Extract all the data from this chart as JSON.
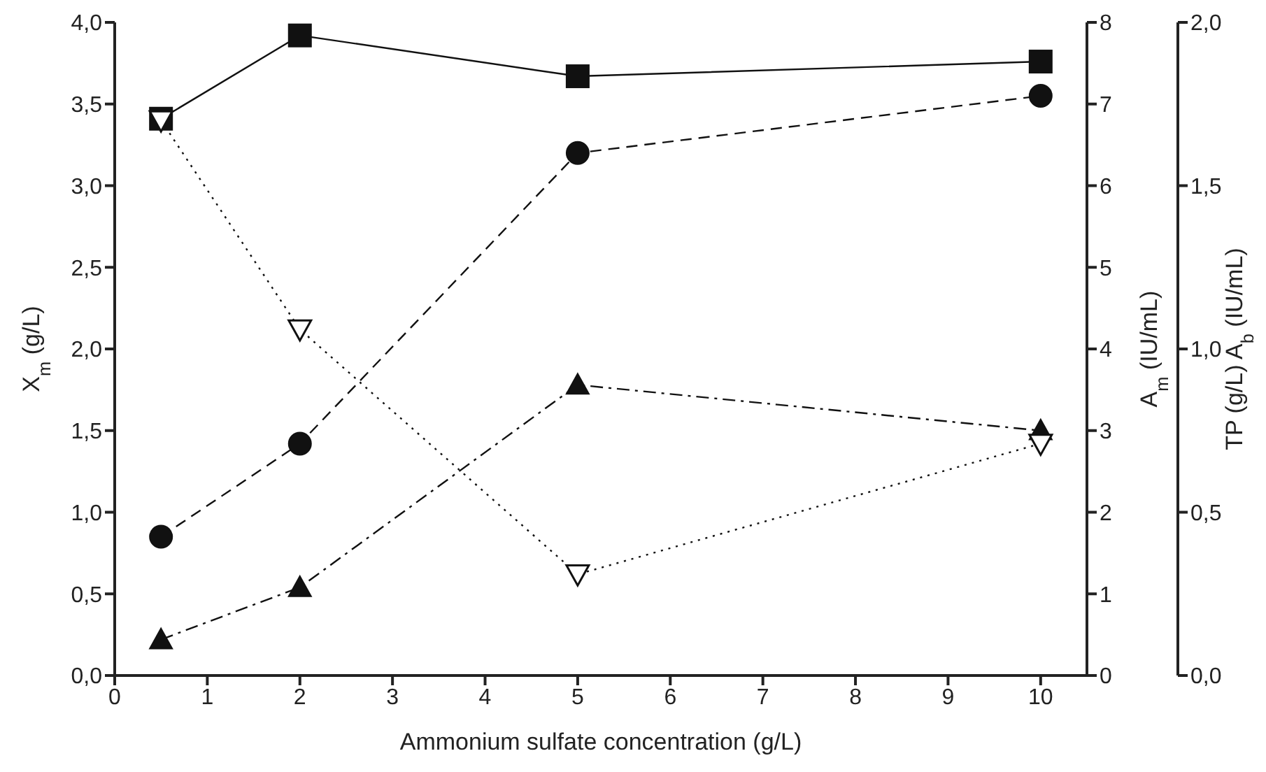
{
  "chart_data": {
    "type": "line",
    "xlabel": "Ammonium sulfate concentration (g/L)",
    "ylabel": "X$_{m}$ (g/L)",
    "y2label": "A$_{m}$ (IU/mL)",
    "y3label": "TP (g/L)   A$_{b}$ (IU/mL)",
    "x": [
      0.5,
      2,
      5,
      10
    ],
    "xlim": [
      0,
      10.5
    ],
    "xticks": [
      0,
      1,
      2,
      3,
      4,
      5,
      6,
      7,
      8,
      9,
      10
    ],
    "ylim": [
      0,
      4
    ],
    "yticks": [
      {
        "value": 0,
        "label": "0,0"
      },
      {
        "value": 0.5,
        "label": "0,5"
      },
      {
        "value": 1,
        "label": "1,0"
      },
      {
        "value": 1.5,
        "label": "1,5"
      },
      {
        "value": 2,
        "label": "2,0"
      },
      {
        "value": 2.5,
        "label": "2,5"
      },
      {
        "value": 3,
        "label": "3,0"
      },
      {
        "value": 3.5,
        "label": "3,5"
      },
      {
        "value": 4,
        "label": "4,0"
      }
    ],
    "y2lim": [
      0,
      8
    ],
    "y2ticks": [
      0,
      1,
      2,
      3,
      4,
      5,
      6,
      7,
      8
    ],
    "y3lim": [
      0,
      2
    ],
    "y3ticks": [
      {
        "value": 0,
        "label": "0,0"
      },
      {
        "value": 0.5,
        "label": "0,5"
      },
      {
        "value": 1,
        "label": "1,0"
      },
      {
        "value": 1.5,
        "label": "1,5"
      },
      {
        "value": 2,
        "label": "2,0"
      }
    ],
    "series": [
      {
        "color": "#111111",
        "values": [
          3.41,
          3.92,
          3.67,
          3.76
        ],
        "marker": "square",
        "line_style": "solid"
      },
      {
        "color": "#111111",
        "values": [
          1.7,
          2.84,
          6.4,
          7.1
        ],
        "axis": "y2",
        "marker": "circle",
        "line_style": "dashed"
      },
      {
        "color": "#111111",
        "values": [
          0.11,
          0.27,
          0.89,
          0.75
        ],
        "axis": "y3",
        "marker": "triangle",
        "line_style": "dashdot"
      },
      {
        "color": "#111111",
        "values": [
          1.7,
          1.06,
          0.31,
          0.71
        ],
        "axis": "y3",
        "marker": "triangle-down",
        "line_style": "dotted"
      }
    ]
  }
}
